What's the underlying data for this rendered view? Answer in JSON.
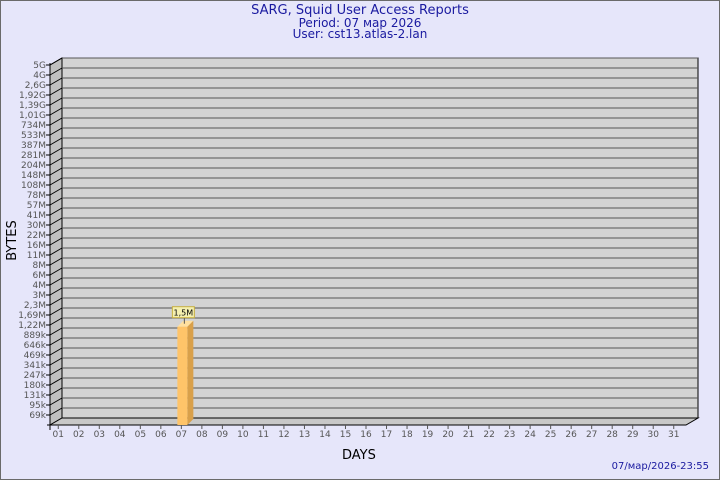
{
  "title": "SARG, Squid User Access Reports",
  "period": "Period: 07 мар 2026",
  "user": "User: cst13.atlas-2.lan",
  "footer": "07/мар/2026-23:55",
  "chart_data": {
    "type": "bar",
    "xlabel": "DAYS",
    "ylabel": "BYTES",
    "y_scale": "log",
    "y_tick_labels": [
      "5G",
      "4G",
      "2,6G",
      "1,92G",
      "1,39G",
      "1,01G",
      "734M",
      "533M",
      "387M",
      "281M",
      "204M",
      "148M",
      "108M",
      "78M",
      "57M",
      "41M",
      "30M",
      "22M",
      "16M",
      "11M",
      "8M",
      "6M",
      "4M",
      "3M",
      "2,3M",
      "1,69M",
      "1,22M",
      "889k",
      "646k",
      "469k",
      "341k",
      "247k",
      "180k",
      "131k",
      "95k",
      "69k"
    ],
    "categories": [
      "01",
      "02",
      "03",
      "04",
      "05",
      "06",
      "07",
      "08",
      "09",
      "10",
      "11",
      "12",
      "13",
      "14",
      "15",
      "16",
      "17",
      "18",
      "19",
      "20",
      "21",
      "22",
      "23",
      "24",
      "25",
      "26",
      "27",
      "28",
      "29",
      "30",
      "31"
    ],
    "values": [
      null,
      null,
      null,
      null,
      null,
      null,
      1500000,
      null,
      null,
      null,
      null,
      null,
      null,
      null,
      null,
      null,
      null,
      null,
      null,
      null,
      null,
      null,
      null,
      null,
      null,
      null,
      null,
      null,
      null,
      null,
      null
    ],
    "data_labels": {
      "07": "1,5M"
    },
    "grid": true,
    "bar_color": "#ffc469",
    "plot_background": "#d3d3d3"
  }
}
